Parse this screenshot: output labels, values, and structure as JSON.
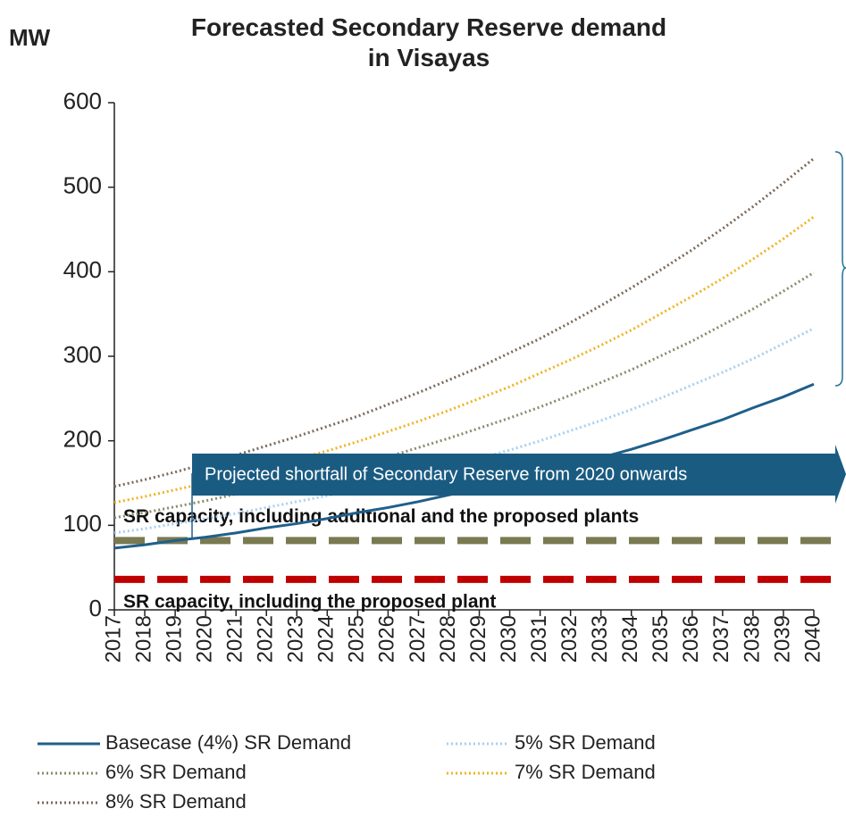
{
  "chart_data": {
    "type": "line",
    "title": "Forecasted Secondary Reserve demand in Visayas",
    "y_label": "MW",
    "categories": [
      "2017",
      "2018",
      "2019",
      "2020",
      "2021",
      "2022",
      "2023",
      "2024",
      "2025",
      "2026",
      "2027",
      "2028",
      "2029",
      "2030",
      "2031",
      "2032",
      "2033",
      "2034",
      "2035",
      "2036",
      "2037",
      "2038",
      "2039",
      "2040"
    ],
    "series": [
      {
        "name": "Basecase (4%) SR Demand",
        "color": "#1f5f8b",
        "style": "solid",
        "values": [
          73,
          77,
          82,
          86,
          91,
          97,
          102,
          108,
          115,
          121,
          128,
          136,
          144,
          152,
          161,
          170,
          180,
          190,
          201,
          213,
          225,
          239,
          252,
          267
        ]
      },
      {
        "name": "5% SR Demand",
        "color": "#a9cfee",
        "style": "dotted",
        "values": [
          91,
          96,
          102,
          108,
          114,
          121,
          128,
          135,
          143,
          151,
          160,
          169,
          179,
          189,
          200,
          212,
          224,
          237,
          251,
          266,
          281,
          297,
          315,
          333
        ]
      },
      {
        "name": "6% SR Demand",
        "color": "#8c8a6c",
        "style": "dotted",
        "values": [
          109,
          115,
          122,
          129,
          137,
          145,
          153,
          162,
          171,
          181,
          192,
          203,
          215,
          227,
          240,
          254,
          269,
          284,
          301,
          318,
          337,
          356,
          377,
          399
        ]
      },
      {
        "name": "7% SR Demand",
        "color": "#f0b323",
        "style": "dotted",
        "values": [
          127,
          134,
          142,
          150,
          159,
          168,
          178,
          188,
          199,
          211,
          223,
          236,
          250,
          264,
          280,
          296,
          313,
          331,
          351,
          371,
          392,
          415,
          439,
          465
        ]
      },
      {
        "name": "8% SR Demand",
        "color": "#7a6a5c",
        "style": "dotted",
        "values": [
          146,
          154,
          163,
          173,
          183,
          194,
          205,
          217,
          229,
          243,
          257,
          272,
          287,
          304,
          321,
          340,
          360,
          381,
          403,
          426,
          451,
          477,
          505,
          534
        ]
      }
    ],
    "reference_lines": [
      {
        "label": "SR capacity, including additional and the proposed plants",
        "value": 82,
        "color": "#7a7a52"
      },
      {
        "label": "SR capacity, including the proposed plant",
        "value": 36,
        "color": "#c00000"
      }
    ],
    "annotation": "Projected shortfall of Secondary Reserve from 2020 onwards",
    "ylim": [
      0,
      600
    ],
    "yticks": [
      0,
      100,
      200,
      300,
      400,
      500,
      600
    ],
    "grid": false
  }
}
